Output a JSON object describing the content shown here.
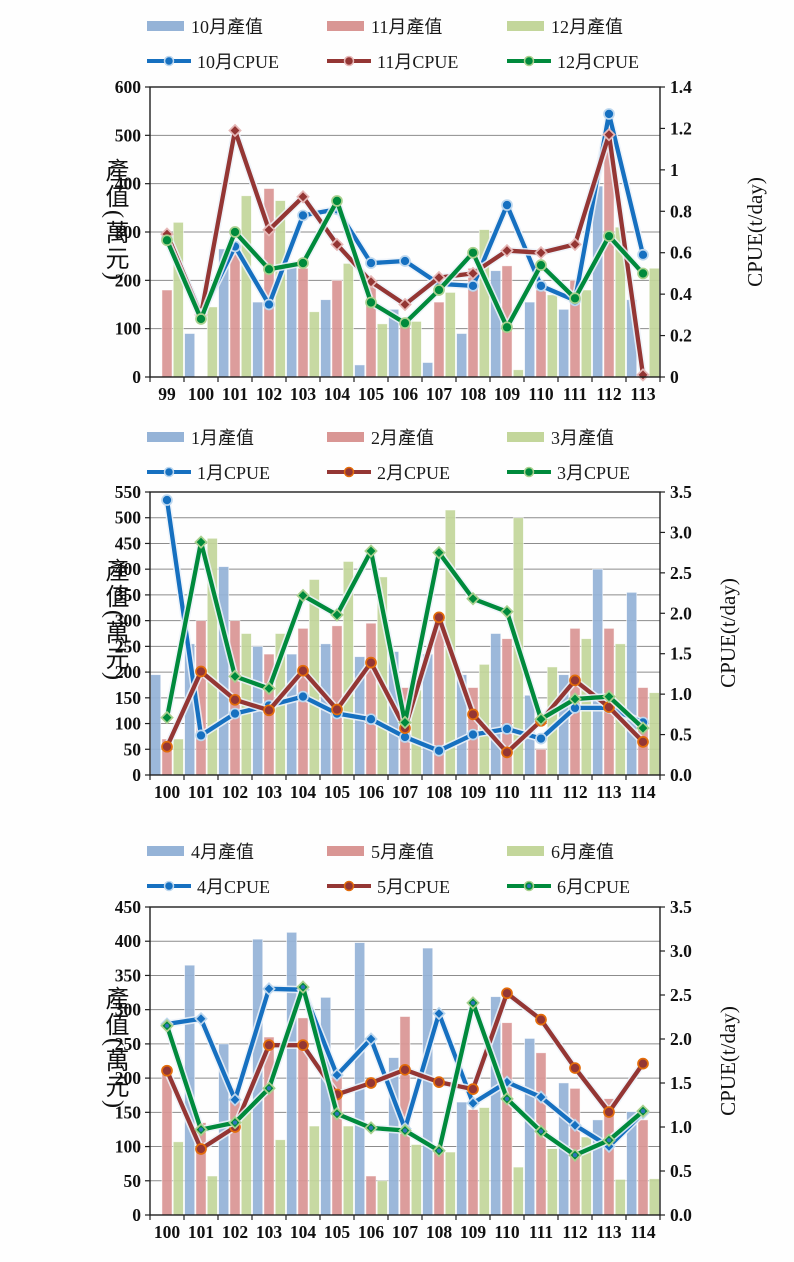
{
  "page": {
    "background": "#ffffff"
  },
  "chart_data": [
    {
      "type": "bar+line",
      "title": "",
      "categories": [
        "99",
        "100",
        "101",
        "102",
        "103",
        "104",
        "105",
        "106",
        "107",
        "108",
        "109",
        "110",
        "111",
        "112",
        "113"
      ],
      "left_axis": {
        "label": "產值(萬元)",
        "min": 0,
        "max": 600,
        "step": 100,
        "tick_labels": [
          "0",
          "100",
          "200",
          "300",
          "400",
          "500",
          "600"
        ]
      },
      "right_axis": {
        "label": "CPUE(t/day)",
        "min": 0,
        "max": 1.4,
        "step": 0.2,
        "tick_labels": [
          "0",
          "0.2",
          "0.4",
          "0.6",
          "0.8",
          "1",
          "1.2",
          "1.4"
        ]
      },
      "grid": true,
      "legend_position": "top",
      "bar_series": [
        {
          "name": "10月產值",
          "color": "#95B3D7",
          "values": [
            0,
            90,
            265,
            155,
            230,
            160,
            25,
            140,
            30,
            90,
            220,
            155,
            140,
            395,
            160
          ]
        },
        {
          "name": "11月產值",
          "color": "#D99694",
          "values": [
            180,
            0,
            260,
            390,
            225,
            200,
            200,
            110,
            155,
            225,
            230,
            180,
            200,
            505,
            0
          ]
        },
        {
          "name": "12月產值",
          "color": "#C3D69B",
          "values": [
            320,
            145,
            375,
            365,
            135,
            235,
            110,
            115,
            175,
            305,
            15,
            170,
            180,
            310,
            225
          ]
        }
      ],
      "line_series": [
        {
          "name": "10月CPUE",
          "color": "#1670C0",
          "ring": "#BDD7EE",
          "marker": "circle",
          "values": [
            0.67,
            0.3,
            0.63,
            0.35,
            0.78,
            0.81,
            0.55,
            0.56,
            0.45,
            0.44,
            0.83,
            0.44,
            0.37,
            1.27,
            0.59
          ]
        },
        {
          "name": "11月CPUE",
          "color": "#943634",
          "ring": "#E6B8B7",
          "marker": "diamond",
          "values": [
            0.69,
            0.3,
            1.19,
            0.71,
            0.87,
            0.64,
            0.46,
            0.35,
            0.48,
            0.5,
            0.61,
            0.6,
            0.64,
            1.17,
            0.01
          ]
        },
        {
          "name": "12月CPUE",
          "color": "#008A3C",
          "ring": "#A9D08E",
          "marker": "circle",
          "values": [
            0.66,
            0.28,
            0.7,
            0.52,
            0.55,
            0.85,
            0.36,
            0.26,
            0.42,
            0.6,
            0.24,
            0.54,
            0.38,
            0.68,
            0.5
          ]
        }
      ]
    },
    {
      "type": "bar+line",
      "title": "",
      "categories": [
        "100",
        "101",
        "102",
        "103",
        "104",
        "105",
        "106",
        "107",
        "108",
        "109",
        "110",
        "111",
        "112",
        "113",
        "114"
      ],
      "left_axis": {
        "label": "產值(萬元)",
        "min": 0,
        "max": 550,
        "step": 50,
        "tick_labels": [
          "0",
          "50",
          "100",
          "150",
          "200",
          "250",
          "300",
          "350",
          "400",
          "450",
          "500",
          "550"
        ]
      },
      "right_axis": {
        "label": "CPUE(t/day)",
        "min": 0,
        "max": 3.5,
        "step": 0.5,
        "tick_labels": [
          "0.0",
          "0.5",
          "1.0",
          "1.5",
          "2.0",
          "2.5",
          "3.0",
          "3.5"
        ]
      },
      "grid": true,
      "legend_position": "top",
      "bar_series": [
        {
          "name": "1月產值",
          "color": "#95B3D7",
          "values": [
            195,
            255,
            405,
            250,
            235,
            255,
            230,
            240,
            235,
            195,
            275,
            155,
            195,
            400,
            355
          ]
        },
        {
          "name": "2月產值",
          "color": "#D99694",
          "values": [
            70,
            300,
            300,
            235,
            285,
            290,
            295,
            170,
            305,
            170,
            265,
            50,
            285,
            285,
            170
          ]
        },
        {
          "name": "3月產值",
          "color": "#C3D69B",
          "values": [
            70,
            460,
            275,
            275,
            380,
            415,
            385,
            165,
            515,
            215,
            500,
            210,
            265,
            255,
            160
          ]
        }
      ],
      "line_series": [
        {
          "name": "1月CPUE",
          "color": "#1670C0",
          "ring": "#BDD7EE",
          "marker": "circle",
          "values": [
            3.4,
            0.49,
            0.76,
            0.86,
            0.97,
            0.76,
            0.69,
            0.47,
            0.3,
            0.5,
            0.57,
            0.45,
            0.83,
            0.83,
            0.65
          ]
        },
        {
          "name": "2月CPUE",
          "color": "#943634",
          "ring": "#E36C0A",
          "marker": "circle",
          "values": [
            0.35,
            1.28,
            0.93,
            0.8,
            1.29,
            0.81,
            1.39,
            0.58,
            1.95,
            0.75,
            0.28,
            0.67,
            1.17,
            0.84,
            0.41
          ]
        },
        {
          "name": "3月CPUE",
          "color": "#008A3C",
          "ring": "#A9D08E",
          "marker": "diamond",
          "values": [
            0.71,
            2.88,
            1.22,
            1.07,
            2.22,
            1.98,
            2.77,
            0.65,
            2.75,
            2.18,
            2.02,
            0.69,
            0.94,
            0.97,
            0.58
          ]
        }
      ]
    },
    {
      "type": "bar+line",
      "title": "",
      "categories": [
        "100",
        "101",
        "102",
        "103",
        "104",
        "105",
        "106",
        "107",
        "108",
        "109",
        "110",
        "111",
        "112",
        "113",
        "114"
      ],
      "left_axis": {
        "label": "產值(萬元)",
        "min": 0,
        "max": 450,
        "step": 50,
        "tick_labels": [
          "0",
          "50",
          "100",
          "150",
          "200",
          "250",
          "300",
          "350",
          "400",
          "450"
        ]
      },
      "right_axis": {
        "label": "CPUE(t/day)",
        "min": 0,
        "max": 3.5,
        "step": 0.5,
        "tick_labels": [
          "0.0",
          "0.5",
          "1.0",
          "1.5",
          "2.0",
          "2.5",
          "3.0",
          "3.5"
        ]
      },
      "grid": true,
      "legend_position": "top",
      "bar_series": [
        {
          "name": "4月產值",
          "color": "#95B3D7",
          "values": [
            0,
            365,
            250,
            403,
            413,
            318,
            398,
            230,
            390,
            165,
            319,
            258,
            193,
            139,
            151
          ]
        },
        {
          "name": "5月產值",
          "color": "#D99694",
          "values": [
            212,
            135,
            185,
            260,
            288,
            213,
            57,
            290,
            95,
            154,
            281,
            237,
            185,
            170,
            139
          ]
        },
        {
          "name": "6月產值",
          "color": "#C3D69B",
          "values": [
            107,
            57,
            163,
            110,
            130,
            130,
            50,
            103,
            92,
            157,
            70,
            97,
            114,
            52,
            53
          ]
        }
      ],
      "line_series": [
        {
          "name": "4月CPUE",
          "color": "#1670C0",
          "ring": "#BDD7EE",
          "marker": "diamond",
          "values": [
            2.17,
            2.23,
            1.31,
            2.57,
            2.56,
            1.59,
            2.0,
            0.98,
            2.29,
            1.27,
            1.51,
            1.34,
            1.02,
            0.78,
            1.16
          ]
        },
        {
          "name": "5月CPUE",
          "color": "#943634",
          "ring": "#E36C0A",
          "marker": "circle",
          "values": [
            1.64,
            0.75,
            1.0,
            1.93,
            1.93,
            1.37,
            1.5,
            1.65,
            1.51,
            1.43,
            2.52,
            2.22,
            1.67,
            1.17,
            1.72
          ]
        },
        {
          "name": "6月CPUE",
          "color": "#008A3C",
          "ring": "#A9D08E",
          "marker": "diamond",
          "inner_dot": "#2E75B6",
          "values": [
            2.15,
            0.97,
            1.05,
            1.44,
            2.59,
            1.15,
            0.99,
            0.96,
            0.73,
            2.41,
            1.32,
            0.95,
            0.68,
            0.85,
            1.18
          ]
        }
      ]
    }
  ]
}
